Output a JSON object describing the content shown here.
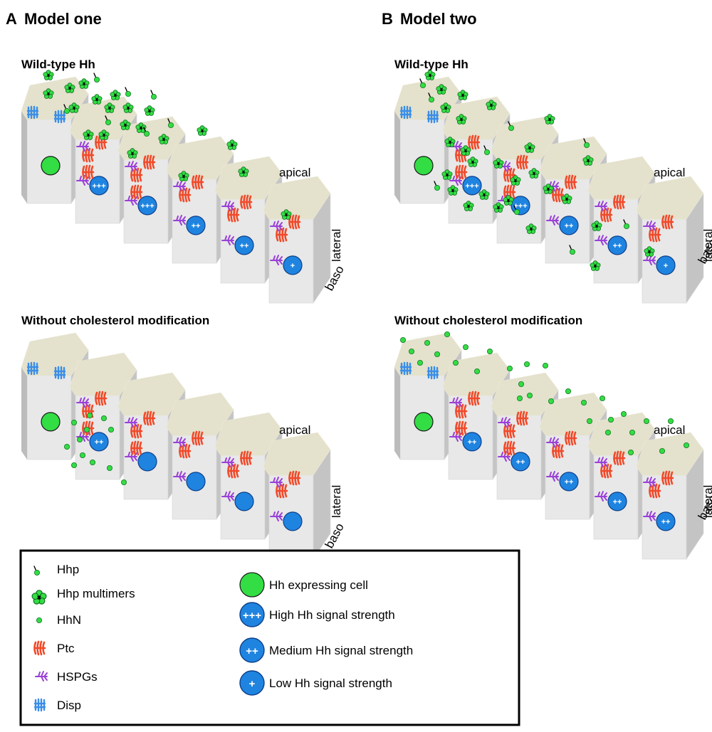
{
  "panels": [
    {
      "letter": "A",
      "title": "Model one",
      "subpanels": [
        {
          "title": "Wild-type Hh",
          "label_apical": "apical",
          "label_lateral": "lateral",
          "label_baso": "baso",
          "cells": [
            {
              "nucleus": "Hh expressing cell",
              "text": ""
            },
            {
              "nucleus": "High Hh signal strength",
              "text": "+++"
            },
            {
              "nucleus": "High Hh signal strength",
              "text": "+++"
            },
            {
              "nucleus": "Medium Hh signal strength",
              "text": "++"
            },
            {
              "nucleus": "Medium Hh signal strength",
              "text": "++"
            },
            {
              "nucleus": "Low Hh signal strength",
              "text": "+"
            }
          ]
        },
        {
          "title": "Without cholesterol modification",
          "label_apical": "apical",
          "label_lateral": "lateral",
          "label_baso": "baso",
          "cells": [
            {
              "nucleus": "Hh expressing cell",
              "text": ""
            },
            {
              "nucleus": "Medium Hh signal strength",
              "text": "++"
            },
            {
              "nucleus": "no signal",
              "text": ""
            },
            {
              "nucleus": "no signal",
              "text": ""
            },
            {
              "nucleus": "no signal",
              "text": ""
            },
            {
              "nucleus": "no signal",
              "text": ""
            }
          ]
        }
      ]
    },
    {
      "letter": "B",
      "title": "Model two",
      "subpanels": [
        {
          "title": "Wild-type Hh",
          "label_apical": "apical",
          "label_lateral": "lateral",
          "label_baso": "baso",
          "cells": [
            {
              "nucleus": "Hh expressing cell",
              "text": ""
            },
            {
              "nucleus": "High Hh signal strength",
              "text": "+++"
            },
            {
              "nucleus": "High Hh signal strength",
              "text": "+++"
            },
            {
              "nucleus": "Medium Hh signal strength",
              "text": "++"
            },
            {
              "nucleus": "Medium Hh signal strength",
              "text": "++"
            },
            {
              "nucleus": "Low Hh signal strength",
              "text": "+"
            }
          ]
        },
        {
          "title": "Without cholesterol modification",
          "label_apical": "apical",
          "label_lateral": "lateral",
          "label_baso": "baso",
          "cells": [
            {
              "nucleus": "Hh expressing cell",
              "text": ""
            },
            {
              "nucleus": "Medium Hh signal strength",
              "text": "++"
            },
            {
              "nucleus": "Medium Hh signal strength",
              "text": "++"
            },
            {
              "nucleus": "Medium Hh signal strength",
              "text": "++"
            },
            {
              "nucleus": "Medium Hh signal strength",
              "text": "++"
            },
            {
              "nucleus": "Medium Hh signal strength",
              "text": "++"
            }
          ]
        }
      ]
    }
  ],
  "legend": {
    "left": [
      {
        "icon": "hhp-icon",
        "label": "Hhp"
      },
      {
        "icon": "hhp-multimer-icon",
        "label": "Hhp multimers"
      },
      {
        "icon": "hhn-icon",
        "label": "HhN"
      },
      {
        "icon": "ptc-icon",
        "label": "Ptc"
      },
      {
        "icon": "hspg-icon",
        "label": "HSPGs"
      },
      {
        "icon": "disp-icon",
        "label": "Disp"
      }
    ],
    "right": [
      {
        "icon": "hh-expressing-cell-icon",
        "label": "Hh expressing cell",
        "text": ""
      },
      {
        "icon": "high-signal-icon",
        "label": "High Hh signal strength",
        "text": "+++"
      },
      {
        "icon": "medium-signal-icon",
        "label": "Medium Hh signal strength",
        "text": "++"
      },
      {
        "icon": "low-signal-icon",
        "label": "Low Hh signal strength",
        "text": "+"
      }
    ]
  },
  "colors": {
    "apical_top": "#e4e1cc",
    "cell_front": "#e8e8e8",
    "cell_side": "#c4c4c4",
    "hh_green": "#33dd44",
    "signal_blue": "#1f84e0",
    "ptc_red": "#f04a2a",
    "hspg_purple": "#9a40d8",
    "disp_blue": "#3a8ee8"
  }
}
